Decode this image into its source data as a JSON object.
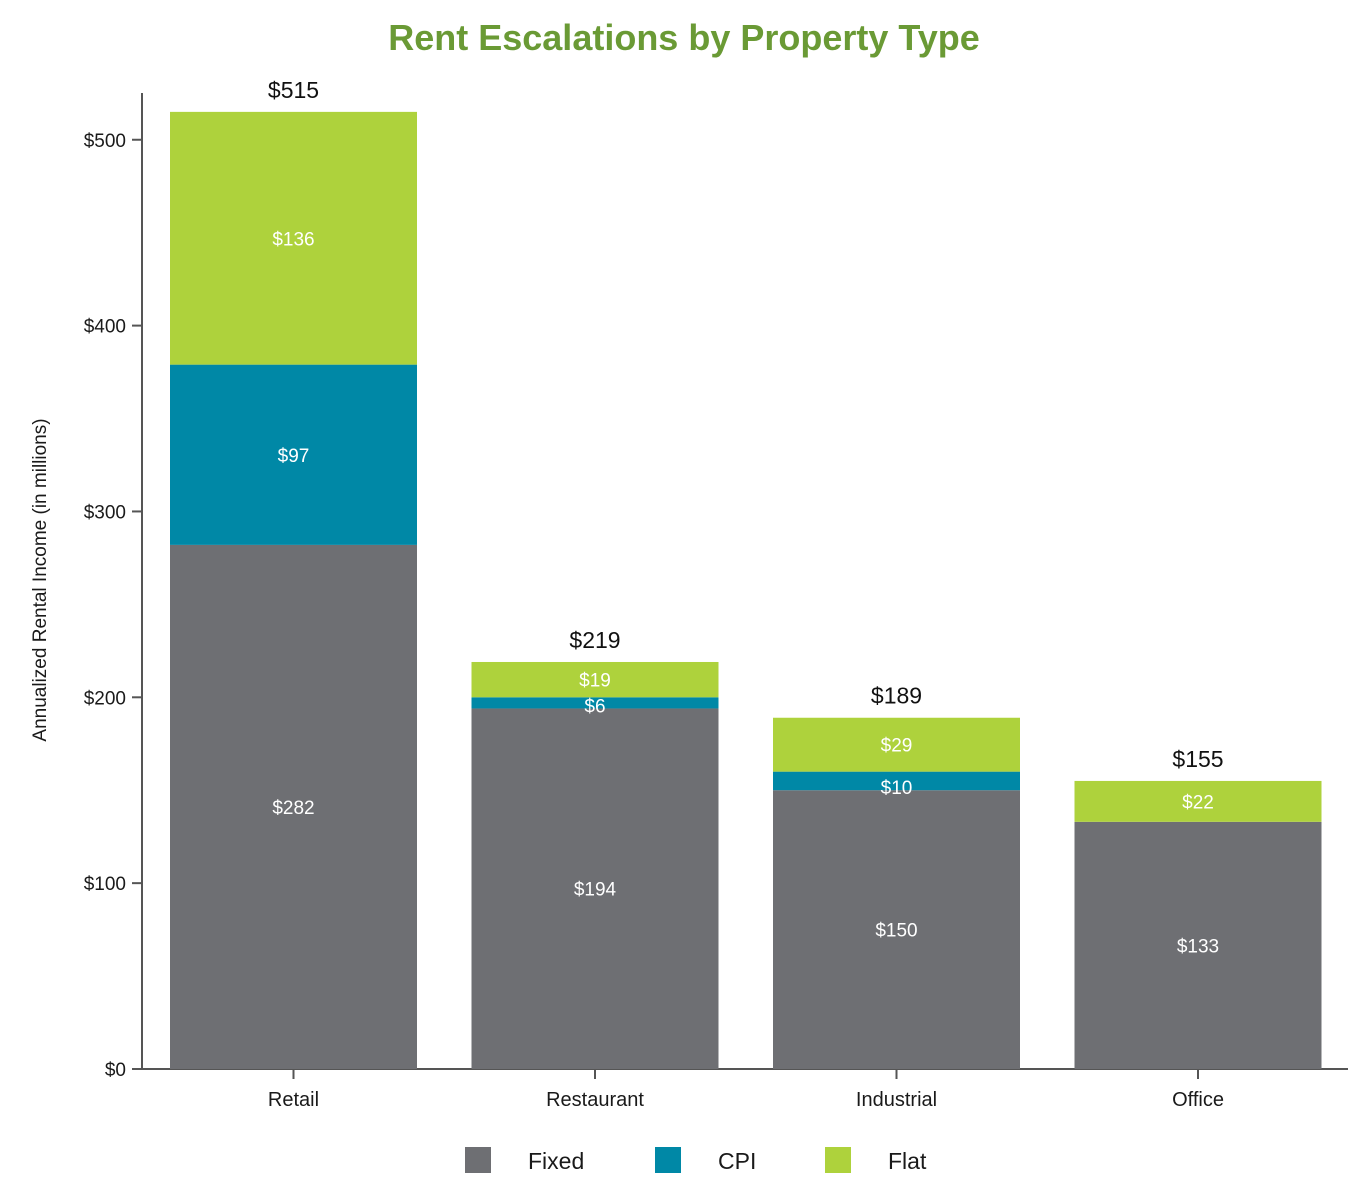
{
  "chart_data": {
    "type": "bar",
    "stacked": true,
    "title": "Rent Escalations by Property Type",
    "xlabel": "",
    "ylabel": "Annualized Rental Income (in millions)",
    "ylim": [
      0,
      550
    ],
    "yticks": [
      0,
      100,
      200,
      300,
      400,
      500
    ],
    "ytick_labels": [
      "$0",
      "$100",
      "$200",
      "$300",
      "$400",
      "$500"
    ],
    "categories": [
      "Retail",
      "Restaurant",
      "Industrial",
      "Office"
    ],
    "series": [
      {
        "name": "Fixed",
        "color": "#6e6f73",
        "values": [
          282,
          194,
          150,
          133
        ],
        "labels": [
          "$282",
          "$194",
          "$150",
          "$133"
        ]
      },
      {
        "name": "CPI",
        "color": "#0088a6",
        "values": [
          97,
          6,
          10,
          0
        ],
        "labels": [
          "$97",
          "$6",
          "$10",
          ""
        ]
      },
      {
        "name": "Flat",
        "color": "#aed23c",
        "values": [
          136,
          19,
          29,
          22
        ],
        "labels": [
          "$136",
          "$19",
          "$29",
          "$22"
        ]
      }
    ],
    "totals": [
      515,
      219,
      189,
      155
    ],
    "total_labels": [
      "$515",
      "$219",
      "$189",
      "$155"
    ],
    "legend": [
      "Fixed",
      "CPI",
      "Flat"
    ],
    "legend_position": "bottom-center",
    "grid": false
  },
  "colors": {
    "title": "#6a9a35",
    "axis": "#555555"
  }
}
